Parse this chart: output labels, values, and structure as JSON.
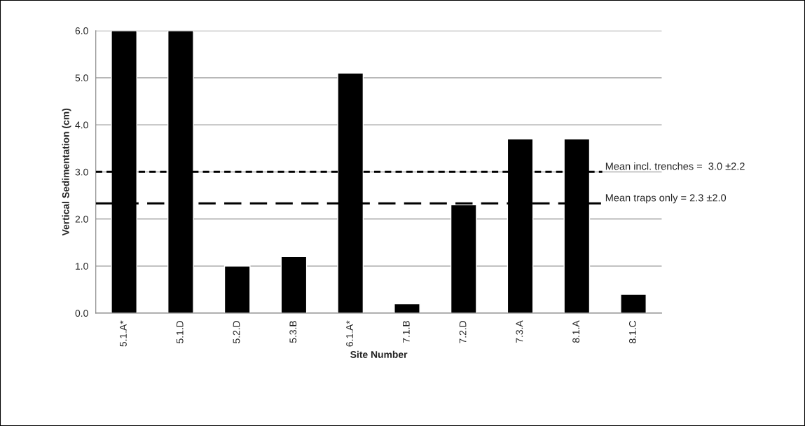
{
  "chart_data": {
    "type": "bar",
    "xlabel": "Site Number",
    "ylabel": "Vertical Sedimentation (cm)",
    "categories": [
      "5.1.A*",
      "5.1.D",
      "5.2.D",
      "5.3.B",
      "6.1.A*",
      "7.1.B",
      "7.2.D",
      "7.3.A",
      "8.1.A",
      "8.1.C"
    ],
    "values": [
      6.0,
      6.0,
      1.0,
      1.2,
      5.1,
      0.2,
      2.3,
      3.7,
      3.7,
      0.4
    ],
    "color": "#000000",
    "ylim": [
      0,
      6
    ],
    "yticks": [
      {
        "value": 0,
        "label": "0.0"
      },
      {
        "value": 1,
        "label": "1.0"
      },
      {
        "value": 2,
        "label": "2.0"
      },
      {
        "value": 3,
        "label": "3.0"
      },
      {
        "value": 4,
        "label": "4.0"
      },
      {
        "value": 5,
        "label": "5.0"
      },
      {
        "value": 6,
        "label": "6.0"
      }
    ],
    "grid": "y",
    "ref_lines": [
      {
        "axis": "y",
        "value": 3.0,
        "label": "Mean incl. trenches =  3.0 ±2.2",
        "color": "#000000",
        "line_style": "dotted"
      },
      {
        "axis": "y",
        "value": 2.33,
        "label": "Mean traps only = 2.3 ±2.0",
        "color": "#000000",
        "line_style": "dashed"
      }
    ]
  }
}
